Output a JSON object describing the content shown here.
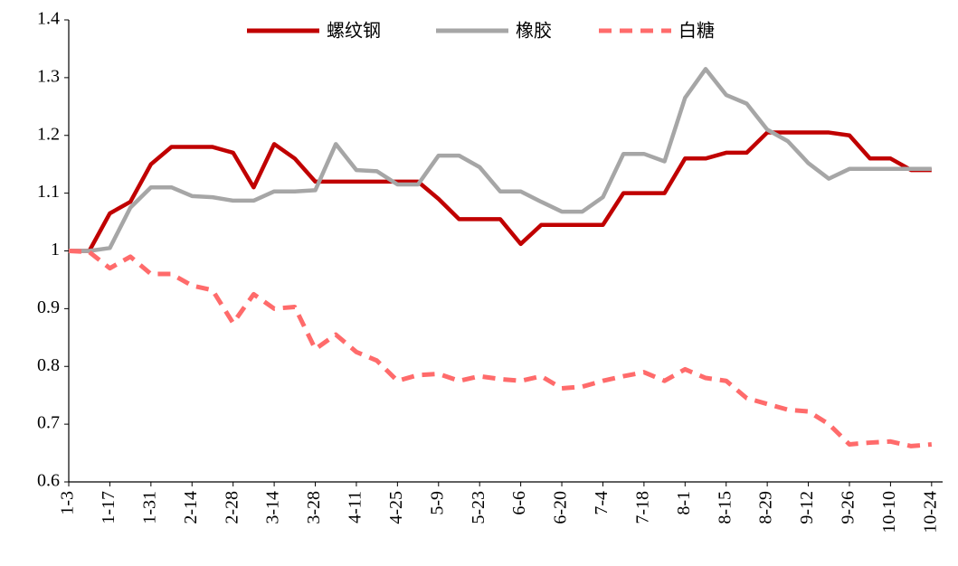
{
  "chart_data": {
    "type": "line",
    "categories": [
      "1-3",
      null,
      "1-17",
      null,
      "1-31",
      null,
      "2-14",
      null,
      "2-28",
      null,
      "3-14",
      null,
      "3-28",
      null,
      "4-11",
      null,
      "4-25",
      null,
      "5-9",
      null,
      "5-23",
      null,
      "6-6",
      null,
      "6-20",
      null,
      "7-4",
      null,
      "7-18",
      null,
      "8-1",
      null,
      "8-15",
      null,
      "8-29",
      null,
      "9-12",
      null,
      "9-26",
      null,
      "10-10",
      null,
      "10-24"
    ],
    "series": [
      {
        "name": "螺纹钢",
        "color": "#c00000",
        "line_style": "solid",
        "values": [
          1.0,
          1.0,
          1.065,
          1.085,
          1.15,
          1.18,
          1.18,
          1.18,
          1.17,
          1.11,
          1.185,
          1.16,
          1.12,
          1.12,
          1.12,
          1.12,
          1.12,
          1.12,
          1.09,
          1.055,
          1.055,
          1.055,
          1.012,
          1.045,
          1.045,
          1.045,
          1.045,
          1.1,
          1.1,
          1.1,
          1.16,
          1.16,
          1.17,
          1.17,
          1.205,
          1.205,
          1.205,
          1.205,
          1.2,
          1.16,
          1.16,
          1.14,
          1.14
        ]
      },
      {
        "name": "橡胶",
        "color": "#a6a6a6",
        "line_style": "solid",
        "values": [
          1.0,
          1.0,
          1.005,
          1.075,
          1.11,
          1.11,
          1.095,
          1.093,
          1.087,
          1.087,
          1.103,
          1.103,
          1.105,
          1.185,
          1.14,
          1.138,
          1.115,
          1.115,
          1.165,
          1.165,
          1.145,
          1.103,
          1.103,
          1.085,
          1.068,
          1.068,
          1.093,
          1.168,
          1.168,
          1.155,
          1.265,
          1.315,
          1.27,
          1.255,
          1.21,
          1.19,
          1.152,
          1.125,
          1.142,
          1.142,
          1.142,
          1.142,
          1.142
        ]
      },
      {
        "name": "白糖",
        "color": "#ff6b6b",
        "line_style": "dashed",
        "values": [
          1.0,
          0.998,
          0.97,
          0.99,
          0.96,
          0.96,
          0.94,
          0.932,
          0.875,
          0.925,
          0.9,
          0.903,
          0.83,
          0.855,
          0.825,
          0.81,
          0.775,
          0.785,
          0.787,
          0.775,
          0.783,
          0.778,
          0.775,
          0.783,
          0.762,
          0.765,
          0.775,
          0.783,
          0.79,
          0.775,
          0.795,
          0.78,
          0.775,
          0.745,
          0.735,
          0.725,
          0.722,
          0.7,
          0.665,
          0.668,
          0.67,
          0.662,
          0.665
        ]
      }
    ],
    "ylim": [
      0.6,
      1.4
    ],
    "yticks": [
      0.6,
      0.7,
      0.8,
      0.9,
      1,
      1.1,
      1.2,
      1.3,
      1.4
    ],
    "grid": false,
    "legend": "top"
  }
}
